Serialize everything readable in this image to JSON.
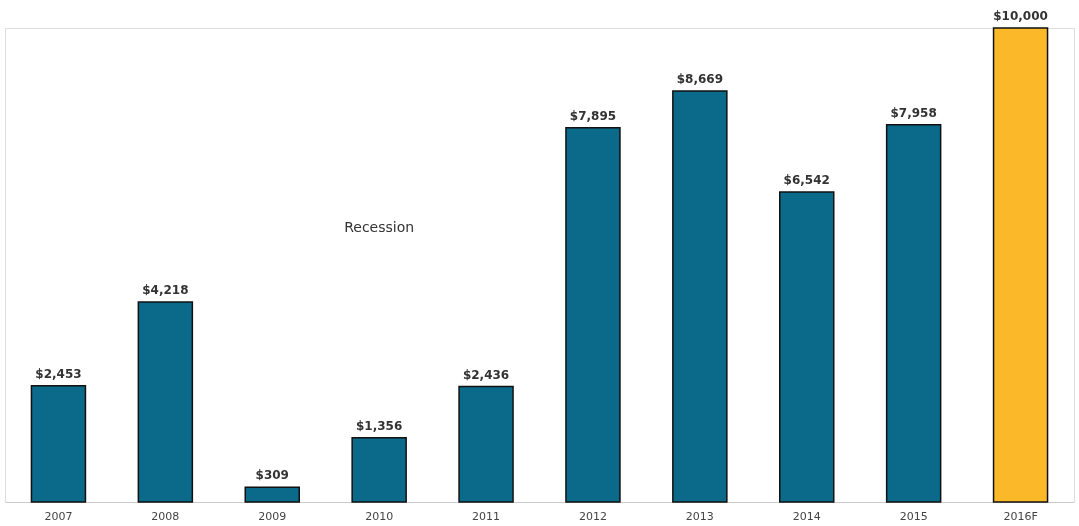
{
  "chart_data": {
    "type": "bar",
    "categories": [
      "2007",
      "2008",
      "2009",
      "2010",
      "2011",
      "2012",
      "2013",
      "2014",
      "2015",
      "2016F"
    ],
    "values": [
      2453,
      4218,
      309,
      1356,
      2436,
      7895,
      8669,
      6542,
      7958,
      10000
    ],
    "colors": [
      "#0b6a8a",
      "#0b6a8a",
      "#0b6a8a",
      "#0b6a8a",
      "#0b6a8a",
      "#0b6a8a",
      "#0b6a8a",
      "#0b6a8a",
      "#0b6a8a",
      "#fbb829"
    ],
    "value_labels": [
      "$2,453",
      "$4,218",
      "$309",
      "$1,356",
      "$2,436",
      "$7,895",
      "$8,669",
      "$6,542",
      "$7,958",
      "$10,000"
    ],
    "annotations": [
      "Recession"
    ],
    "tick_labels": "x",
    "grid": false
  }
}
